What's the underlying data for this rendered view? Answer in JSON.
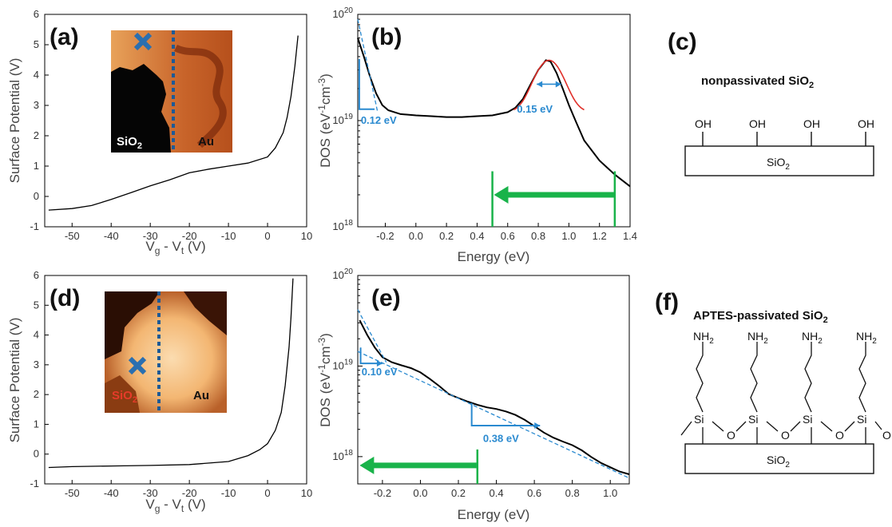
{
  "panels": {
    "a": "(a)",
    "b": "(b)",
    "c": "(c)",
    "d": "(d)",
    "e": "(e)",
    "f": "(f)"
  },
  "insets": {
    "top": {
      "left": "SiO",
      "left_sub": "2",
      "right": "Au"
    },
    "bottom": {
      "left": "SiO",
      "left_sub": "2",
      "right": "Au"
    }
  },
  "molecules": {
    "c_title": "nonpassivated SiO",
    "c_title_sub": "2",
    "c_group": "OH",
    "c_substrate": "SiO",
    "c_substrate_sub": "2",
    "f_title": "APTES-passivated SiO",
    "f_title_sub": "2",
    "f_amine": "NH",
    "f_amine_sub": "2",
    "f_si": "Si",
    "f_o": "O",
    "f_substrate": "SiO",
    "f_substrate_sub": "2"
  },
  "chart_data": [
    {
      "id": "a",
      "type": "line",
      "xlabel": "V",
      "xlabel_sub1": "g",
      "xlabel_mid": " - V",
      "xlabel_sub2": "t",
      "xlabel_tail": " (V)",
      "ylabel": "Surface Potential (V)",
      "xlim": [
        -57,
        10
      ],
      "ylim": [
        -1,
        6
      ],
      "xticks": [
        -50,
        -40,
        -30,
        -20,
        -10,
        0,
        10
      ],
      "yticks": [
        -1,
        0,
        1,
        2,
        3,
        4,
        5,
        6
      ],
      "series": [
        {
          "x": [
            -56,
            -50,
            -45,
            -40,
            -35,
            -30,
            -25,
            -20,
            -15,
            -10,
            -5,
            0,
            2,
            4,
            5,
            6,
            7,
            7.8
          ],
          "y": [
            -0.45,
            -0.4,
            -0.3,
            -0.1,
            0.12,
            0.35,
            0.55,
            0.78,
            0.9,
            1.0,
            1.1,
            1.3,
            1.6,
            2.1,
            2.6,
            3.3,
            4.3,
            5.3
          ]
        }
      ]
    },
    {
      "id": "b",
      "type": "line",
      "yscale": "log",
      "xlabel": "Energy (eV)",
      "ylabel": "DOS (eV",
      "ylabel_sup1": "-1",
      "ylabel_mid": "cm",
      "ylabel_sup2": "-3",
      "ylabel_tail": ")",
      "xlim": [
        -0.38,
        1.4
      ],
      "ylim": [
        1e+18,
        1e+20
      ],
      "xticks": [
        -0.2,
        0.0,
        0.2,
        0.4,
        0.6,
        0.8,
        1.0,
        1.2,
        1.4
      ],
      "yticks": [
        1e+18,
        1e+19,
        1e+20
      ],
      "yticklabels": [
        {
          "base": "10",
          "exp": "18"
        },
        {
          "base": "10",
          "exp": "19"
        },
        {
          "base": "10",
          "exp": "20"
        }
      ],
      "series": [
        {
          "x": [
            -0.38,
            -0.34,
            -0.3,
            -0.26,
            -0.22,
            -0.18,
            -0.1,
            0.0,
            0.1,
            0.2,
            0.3,
            0.4,
            0.5,
            0.6,
            0.65,
            0.7,
            0.75,
            0.8,
            0.85,
            0.88,
            0.92,
            0.96,
            1.0,
            1.05,
            1.1,
            1.2,
            1.3,
            1.4
          ],
          "y": [
            6e+19,
            4e+19,
            2.6e+19,
            1.8e+19,
            1.4e+19,
            1.25e+19,
            1.15e+19,
            1.12e+19,
            1.1e+19,
            1.08e+19,
            1.08e+19,
            1.1e+19,
            1.12e+19,
            1.2e+19,
            1.32e+19,
            1.6e+19,
            2.2e+19,
            3e+19,
            3.7e+19,
            3.6e+19,
            2.8e+19,
            2e+19,
            1.4e+19,
            9.5e+18,
            6.5e+18,
            4.2e+18,
            3.1e+18,
            2.4e+18
          ]
        }
      ],
      "annotations": [
        {
          "text": "0.12 eV"
        },
        {
          "text": "0.15 eV"
        }
      ]
    },
    {
      "id": "d",
      "type": "line",
      "xlabel": "V",
      "xlabel_sub1": "g",
      "xlabel_mid": " - V",
      "xlabel_sub2": "t",
      "xlabel_tail": " (V)",
      "ylabel": "Surface Potential (V)",
      "xlim": [
        -57,
        10
      ],
      "ylim": [
        -1,
        6
      ],
      "xticks": [
        -50,
        -40,
        -30,
        -20,
        -10,
        0,
        10
      ],
      "yticks": [
        -1,
        0,
        1,
        2,
        3,
        4,
        5,
        6
      ],
      "series": [
        {
          "x": [
            -56,
            -50,
            -40,
            -30,
            -20,
            -10,
            -5,
            -2,
            0,
            2,
            3.5,
            4.5,
            5.5,
            6,
            6.5
          ],
          "y": [
            -0.45,
            -0.42,
            -0.4,
            -0.38,
            -0.35,
            -0.25,
            -0.05,
            0.15,
            0.35,
            0.8,
            1.4,
            2.3,
            3.6,
            4.6,
            5.9
          ]
        }
      ]
    },
    {
      "id": "e",
      "type": "line",
      "yscale": "log",
      "xlabel": "Energy (eV)",
      "ylabel": "DOS (eV",
      "ylabel_sup1": "-1",
      "ylabel_mid": "cm",
      "ylabel_sup2": "-3",
      "ylabel_tail": ")",
      "xlim": [
        -0.33,
        1.1
      ],
      "ylim": [
        5e+17,
        1e+20
      ],
      "xticks": [
        -0.2,
        0.0,
        0.2,
        0.4,
        0.6,
        0.8,
        1.0
      ],
      "yticks": [
        1e+18,
        1e+19,
        1e+20
      ],
      "yticklabels": [
        {
          "base": "10",
          "exp": "18"
        },
        {
          "base": "10",
          "exp": "19"
        },
        {
          "base": "10",
          "exp": "20"
        }
      ],
      "series": [
        {
          "x": [
            -0.32,
            -0.28,
            -0.24,
            -0.2,
            -0.15,
            -0.1,
            -0.05,
            0.0,
            0.05,
            0.1,
            0.15,
            0.2,
            0.25,
            0.3,
            0.35,
            0.4,
            0.45,
            0.5,
            0.55,
            0.6,
            0.65,
            0.7,
            0.75,
            0.8,
            0.85,
            0.9,
            0.95,
            1.0,
            1.05,
            1.1
          ],
          "y": [
            3.2e+19,
            2.2e+19,
            1.6e+19,
            1.25e+19,
            1.1e+19,
            1.02e+19,
            9.5e+18,
            8.5e+18,
            7.2e+18,
            6e+18,
            4.9e+18,
            4.3e+18,
            4e+18,
            3.8e+18,
            3.6e+18,
            3.4e+18,
            3.1e+18,
            2.8e+18,
            2.5e+18,
            2.2e+18,
            1.9e+18,
            1.65e+18,
            1.45e+18,
            1.3e+18,
            1.15e+18,
            1e+18,
            8.8e+17,
            7.8e+17,
            6.8e+17,
            6.2e+17
          ]
        }
      ],
      "annotations": [
        {
          "text": "0.10 eV"
        },
        {
          "text": "0.38 eV"
        }
      ]
    }
  ]
}
